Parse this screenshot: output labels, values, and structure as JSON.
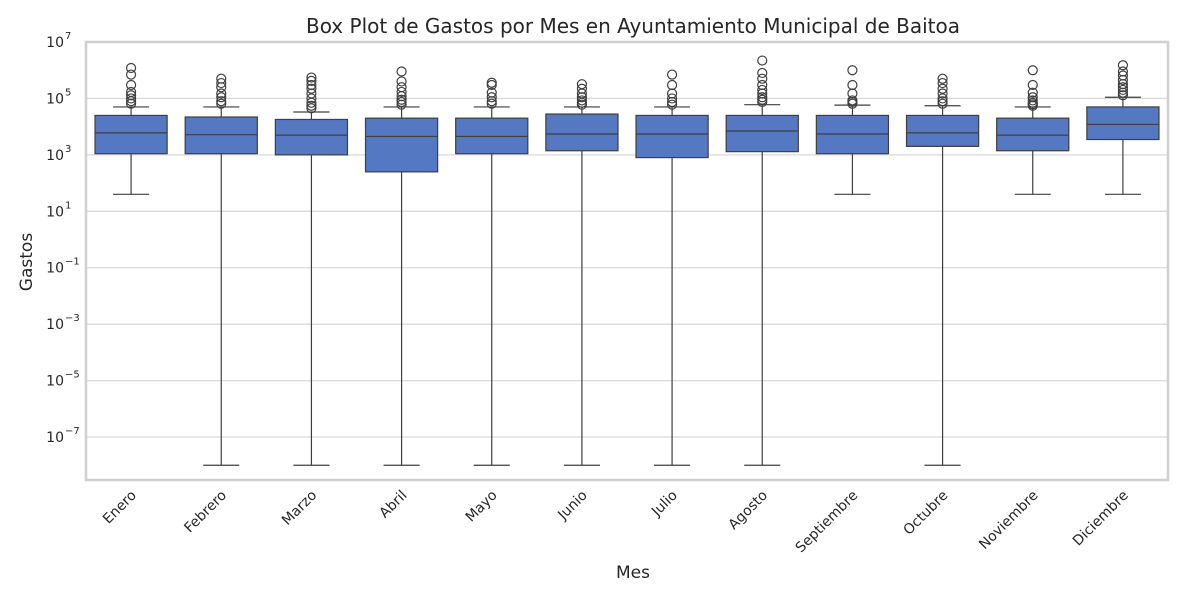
{
  "chart_data": {
    "type": "box",
    "title": "Box Plot de Gastos por Mes en Ayuntamiento Municipal de Baitoa",
    "xlabel": "Mes",
    "ylabel": "Gastos",
    "yscale": "log",
    "ylim": [
      3e-09,
      10000000.0
    ],
    "yticks": [
      {
        "value": 10000000.0,
        "base": "10",
        "exp": "7"
      },
      {
        "value": 100000.0,
        "base": "10",
        "exp": "5"
      },
      {
        "value": 1000.0,
        "base": "10",
        "exp": "3"
      },
      {
        "value": 10.0,
        "base": "10",
        "exp": "1"
      },
      {
        "value": 0.1,
        "base": "10",
        "exp": "−1"
      },
      {
        "value": 0.001,
        "base": "10",
        "exp": "−3"
      },
      {
        "value": 1e-05,
        "base": "10",
        "exp": "−5"
      },
      {
        "value": 1e-07,
        "base": "10",
        "exp": "−7"
      }
    ],
    "grid": true,
    "color": "#5578c2",
    "categories": [
      "Enero",
      "Febrero",
      "Marzo",
      "Abril",
      "Mayo",
      "Junio",
      "Julio",
      "Agosto",
      "Septiembre",
      "Octubre",
      "Noviembre",
      "Diciembre"
    ],
    "boxes": [
      {
        "whisker_low": 40,
        "q1": 1100,
        "median": 6000,
        "q3": 25000,
        "whisker_high": 50000,
        "fliers": [
          65000,
          80000,
          100000,
          130000,
          170000,
          300000,
          700000,
          1200000
        ]
      },
      {
        "whisker_low": 1e-08,
        "q1": 1100,
        "median": 5200,
        "q3": 22000,
        "whisker_high": 50000,
        "fliers": [
          65000,
          80000,
          110000,
          150000,
          250000,
          350000,
          500000
        ]
      },
      {
        "whisker_low": 1e-08,
        "q1": 1000,
        "median": 5000,
        "q3": 18000,
        "whisker_high": 33000,
        "fliers": [
          45000,
          55000,
          70000,
          100000,
          150000,
          220000,
          300000,
          420000,
          550000
        ]
      },
      {
        "whisker_low": 1e-08,
        "q1": 250,
        "median": 4500,
        "q3": 20000,
        "whisker_high": 50000,
        "fliers": [
          60000,
          75000,
          90000,
          120000,
          170000,
          250000,
          400000,
          900000
        ]
      },
      {
        "whisker_low": 1e-08,
        "q1": 1100,
        "median": 4500,
        "q3": 20000,
        "whisker_high": 50000,
        "fliers": [
          65000,
          80000,
          110000,
          160000,
          300000,
          360000
        ]
      },
      {
        "whisker_low": 1e-08,
        "q1": 1400,
        "median": 5500,
        "q3": 28000,
        "whisker_high": 50000,
        "fliers": [
          60000,
          70000,
          85000,
          110000,
          150000,
          220000,
          320000
        ]
      },
      {
        "whisker_low": 1e-08,
        "q1": 800,
        "median": 5500,
        "q3": 25000,
        "whisker_high": 50000,
        "fliers": [
          60000,
          75000,
          100000,
          150000,
          300000,
          700000
        ]
      },
      {
        "whisker_low": 1e-08,
        "q1": 1300,
        "median": 7000,
        "q3": 25000,
        "whisker_high": 60000,
        "fliers": [
          75000,
          90000,
          110000,
          150000,
          200000,
          300000,
          500000,
          800000,
          2200000
        ]
      },
      {
        "whisker_low": 40,
        "q1": 1100,
        "median": 5500,
        "q3": 25000,
        "whisker_high": 58000,
        "fliers": [
          65000,
          75000,
          85000,
          150000,
          300000,
          1000000
        ]
      },
      {
        "whisker_low": 1e-08,
        "q1": 2000,
        "median": 6000,
        "q3": 25000,
        "whisker_high": 55000,
        "fliers": [
          65000,
          80000,
          100000,
          150000,
          220000,
          350000,
          500000
        ]
      },
      {
        "whisker_low": 40,
        "q1": 1400,
        "median": 5000,
        "q3": 20000,
        "whisker_high": 50000,
        "fliers": [
          55000,
          62000,
          70000,
          85000,
          110000,
          160000,
          300000,
          1000000
        ]
      },
      {
        "whisker_low": 40,
        "q1": 3500,
        "median": 12000,
        "q3": 50000,
        "whisker_high": 110000,
        "fliers": [
          130000,
          160000,
          200000,
          250000,
          320000,
          450000,
          650000,
          900000,
          1500000
        ]
      }
    ]
  }
}
